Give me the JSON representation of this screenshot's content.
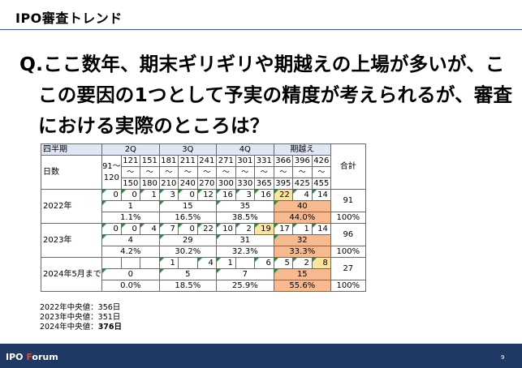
{
  "header": {
    "title": "IPO審査トレンド"
  },
  "question": {
    "lines": [
      "Q.ここ数年、期末ギリギリや期越えの上場が多いが、こ",
      "この要因の1つとして予実の精度が考えられるが、審査",
      "における実際のところは？"
    ]
  },
  "table": {
    "corner": "四半期",
    "days_label": "日数",
    "total_label": "合計",
    "quarters": [
      "2Q",
      "3Q",
      "4Q",
      "期越え"
    ],
    "tilde": "～",
    "ranges": [
      {
        "from": "91～",
        "to": "120"
      },
      {
        "from": "121",
        "to": "150"
      },
      {
        "from": "151",
        "to": "180"
      },
      {
        "from": "181",
        "to": "210"
      },
      {
        "from": "211",
        "to": "240"
      },
      {
        "from": "241",
        "to": "270"
      },
      {
        "from": "271",
        "to": "300"
      },
      {
        "from": "301",
        "to": "330"
      },
      {
        "from": "331",
        "to": "365"
      },
      {
        "from": "366",
        "to": "395"
      },
      {
        "from": "396",
        "to": "425"
      },
      {
        "from": "426",
        "to": "455"
      }
    ],
    "rows": [
      {
        "label": "2022年",
        "counts": [
          "0",
          "0",
          "1",
          "3",
          "0",
          "12",
          "16",
          "3",
          "16",
          "22",
          "4",
          "14"
        ],
        "sums": [
          "1",
          "15",
          "35",
          "40"
        ],
        "pcts": [
          "1.1%",
          "16.5%",
          "38.5%",
          "44.0%"
        ],
        "total": "91",
        "total_pct": "100%"
      },
      {
        "label": "2023年",
        "counts": [
          "0",
          "0",
          "4",
          "7",
          "0",
          "22",
          "10",
          "2",
          "19",
          "17",
          "1",
          "14"
        ],
        "sums": [
          "4",
          "29",
          "31",
          "32"
        ],
        "pcts": [
          "4.2%",
          "30.2%",
          "32.3%",
          "33.3%"
        ],
        "total": "96",
        "total_pct": "100%"
      },
      {
        "label": "2024年5月まで",
        "counts": [
          "",
          "",
          "",
          "1",
          "",
          "4",
          "1",
          "",
          "6",
          "5",
          "2",
          "8"
        ],
        "sums": [
          "0",
          "5",
          "7",
          "15"
        ],
        "pcts": [
          "0.0%",
          "18.5%",
          "25.9%",
          "55.6%"
        ],
        "total": "27",
        "total_pct": "100%"
      }
    ],
    "colors": {
      "header": "#dfe7f4",
      "highlight_yellow": "#fce59a",
      "highlight_orange": "#f7b98f"
    }
  },
  "medians": {
    "line1": "2022年中央値：356日",
    "line2": "2023年中央値：351日",
    "line3_prefix": "2024年中央値：",
    "line3_bold": "376日"
  },
  "footer": {
    "brand_prefix": "IPO ",
    "brand_f": "F",
    "brand_suffix": "orum",
    "page": "9"
  }
}
